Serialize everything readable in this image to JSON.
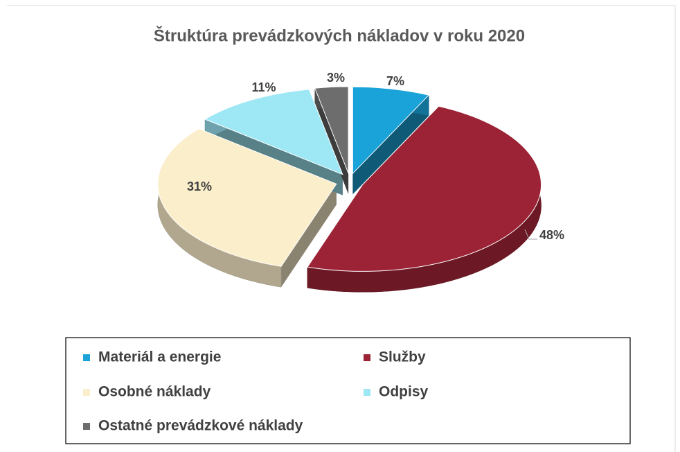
{
  "chart_data": {
    "type": "pie",
    "title": "Štruktúra prevádzkových nákladov v roku 2020",
    "categories": [
      "Materiál a energie",
      "Služby",
      "Osobné náklady",
      "Odpisy",
      "Ostatné prevádzkové náklady"
    ],
    "values": [
      7,
      48,
      31,
      11,
      3
    ],
    "value_labels": [
      "7%",
      "48%",
      "31%",
      "11%",
      "3%"
    ],
    "colors": [
      "#1aa3d9",
      "#9b2335",
      "#fbeecb",
      "#9ee8f5",
      "#6d6d6d"
    ]
  }
}
